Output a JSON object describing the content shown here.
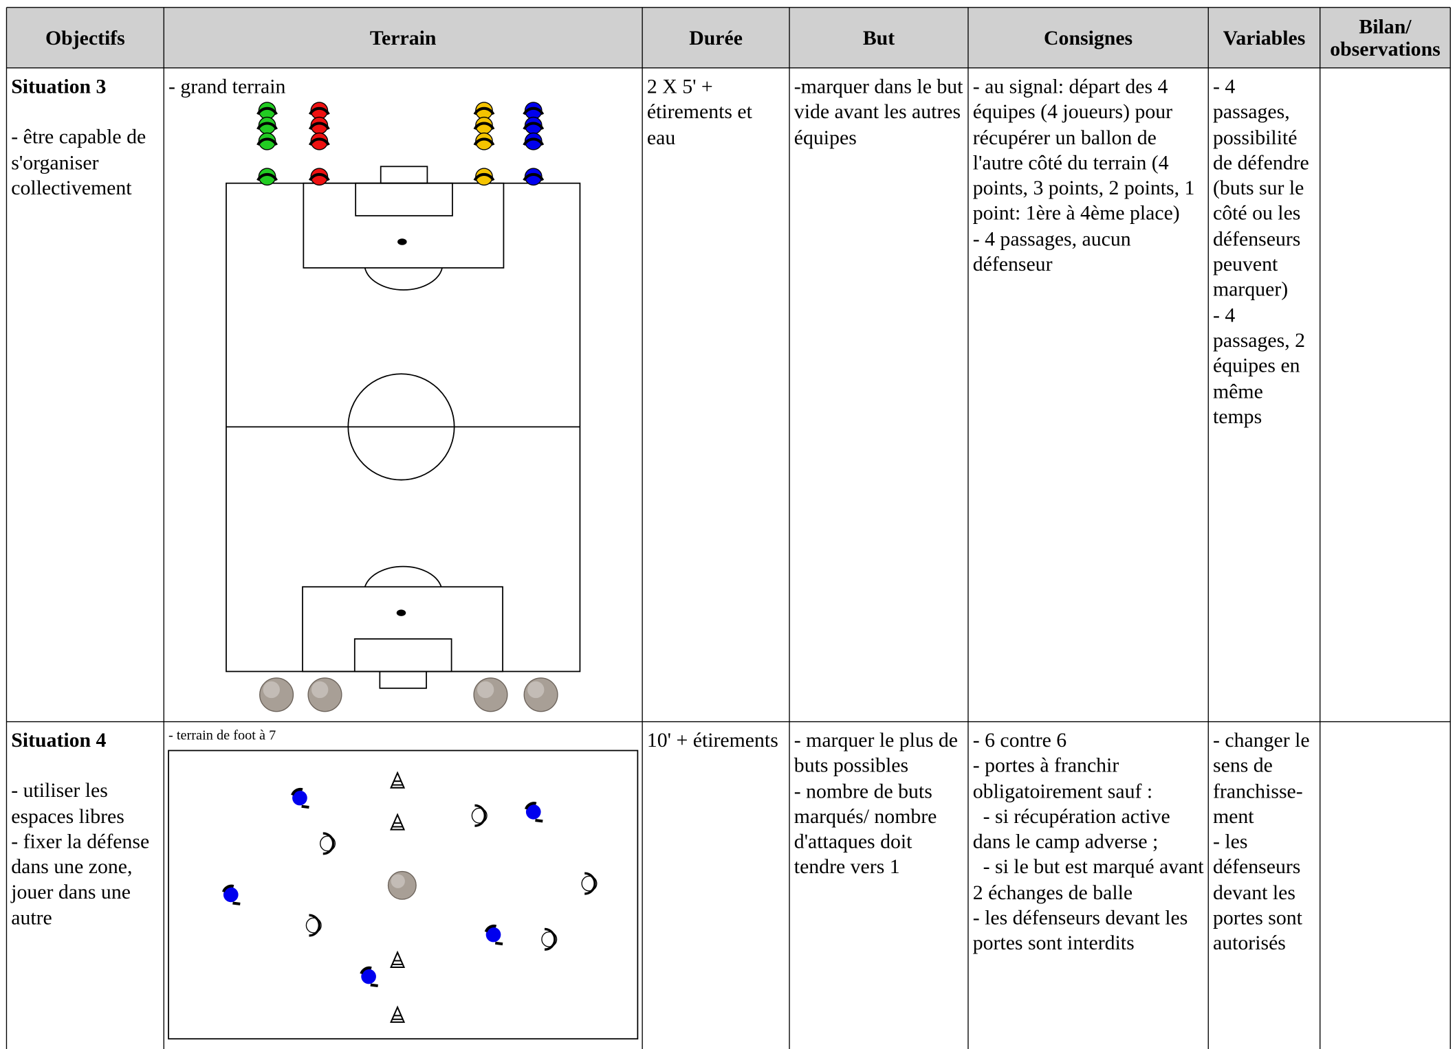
{
  "header": [
    "Objectifs",
    "Terrain",
    "Durée",
    "But",
    "Consignes",
    "Variables",
    "Bilan/ observations"
  ],
  "rows": [
    {
      "title": "Situation 3",
      "objectives": [
        "- être capable de s'organiser collectivement"
      ],
      "terrain": "- grand terrain",
      "duree": [
        "2 X 5' + étirements et eau"
      ],
      "but": [
        "-marquer dans le but vide avant les autres équipes"
      ],
      "consignes": [
        "- au signal: départ des 4 équipes (4 joueurs) pour récupérer un ballon de l'autre côté du terrain (4 points, 3 points, 2 points, 1 point: 1ère à 4ème place)",
        "- 4 passages, aucun défenseur"
      ],
      "variables": [
        "- 4 passages, possibilité de défendre (buts sur le côté ou les défenseurs peuvent marquer)",
        "- 4 passages, 2 équipes en même temps"
      ]
    },
    {
      "title": "Situation 4",
      "objectives": [
        "- utiliser les espaces libres",
        "- fixer la défense dans une zone, jouer dans une autre"
      ],
      "terrain": "- terrain de foot à 7",
      "duree": [
        "10' + étirements"
      ],
      "but": [
        "- marquer le plus de buts possibles",
        "- nombre de buts marqués/ nombre d'attaques doit tendre vers 1"
      ],
      "consignes": [
        "- 6 contre 6",
        "- portes à franchir obligatoirement sauf :",
        "  - si récupération active dans le camp adverse ;",
        "  - si le but est marqué avant 2 échanges de balle",
        "- les défenseurs devant les portes sont interdits"
      ],
      "variables": [
        "- changer le sens de franchisse-ment",
        "- les défenseurs devant les portes sont autorisés"
      ]
    }
  ]
}
